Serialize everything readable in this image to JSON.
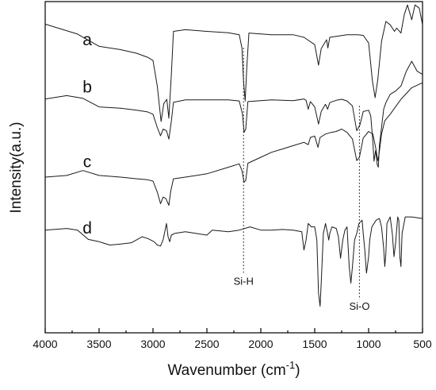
{
  "chart_data": {
    "type": "line",
    "title": "",
    "xlabel": "Wavenumber (cm",
    "xlabel_sup": "-1",
    "xlabel_end": ")",
    "ylabel": "Intensity(a.u.)",
    "xlim": [
      4000,
      500
    ],
    "x_reversed": true,
    "x_ticks": [
      4000,
      3500,
      3000,
      2500,
      2000,
      1500,
      1000,
      500
    ],
    "y_ticks": [],
    "grid": false,
    "y_units": "normalized intensity 0-1, 1 = top of plot",
    "series": [
      {
        "name": "a",
        "points": [
          [
            4000,
            0.932
          ],
          [
            3700,
            0.902
          ],
          [
            3500,
            0.865
          ],
          [
            3300,
            0.855
          ],
          [
            3150,
            0.844
          ],
          [
            3050,
            0.832
          ],
          [
            3000,
            0.822
          ],
          [
            2960,
            0.745
          ],
          [
            2925,
            0.638
          ],
          [
            2900,
            0.692
          ],
          [
            2872,
            0.705
          ],
          [
            2853,
            0.648
          ],
          [
            2830,
            0.778
          ],
          [
            2810,
            0.91
          ],
          [
            2700,
            0.915
          ],
          [
            2500,
            0.91
          ],
          [
            2300,
            0.906
          ],
          [
            2200,
            0.9
          ],
          [
            2175,
            0.86
          ],
          [
            2160,
            0.76
          ],
          [
            2145,
            0.7
          ],
          [
            2130,
            0.8
          ],
          [
            2110,
            0.905
          ],
          [
            1900,
            0.9
          ],
          [
            1700,
            0.9
          ],
          [
            1600,
            0.892
          ],
          [
            1500,
            0.87
          ],
          [
            1465,
            0.808
          ],
          [
            1440,
            0.858
          ],
          [
            1390,
            0.885
          ],
          [
            1378,
            0.86
          ],
          [
            1360,
            0.892
          ],
          [
            1200,
            0.9
          ],
          [
            1100,
            0.9
          ],
          [
            1050,
            0.898
          ],
          [
            1000,
            0.875
          ],
          [
            965,
            0.76
          ],
          [
            940,
            0.71
          ],
          [
            915,
            0.765
          ],
          [
            880,
            0.88
          ],
          [
            840,
            0.94
          ],
          [
            800,
            0.93
          ],
          [
            760,
            0.91
          ],
          [
            740,
            0.92
          ],
          [
            700,
            0.905
          ],
          [
            670,
            0.96
          ],
          [
            640,
            0.99
          ],
          [
            600,
            0.945
          ],
          [
            570,
            0.99
          ],
          [
            530,
            0.98
          ],
          [
            500,
            0.93
          ]
        ]
      },
      {
        "name": "b",
        "points": [
          [
            4000,
            0.706
          ],
          [
            3800,
            0.716
          ],
          [
            3650,
            0.708
          ],
          [
            3500,
            0.682
          ],
          [
            3300,
            0.678
          ],
          [
            3150,
            0.672
          ],
          [
            3050,
            0.667
          ],
          [
            3000,
            0.66
          ],
          [
            2960,
            0.62
          ],
          [
            2930,
            0.595
          ],
          [
            2905,
            0.615
          ],
          [
            2875,
            0.61
          ],
          [
            2853,
            0.585
          ],
          [
            2830,
            0.638
          ],
          [
            2810,
            0.696
          ],
          [
            2700,
            0.703
          ],
          [
            2500,
            0.703
          ],
          [
            2300,
            0.703
          ],
          [
            2200,
            0.7
          ],
          [
            2170,
            0.66
          ],
          [
            2155,
            0.605
          ],
          [
            2140,
            0.615
          ],
          [
            2120,
            0.698
          ],
          [
            1900,
            0.703
          ],
          [
            1700,
            0.701
          ],
          [
            1600,
            0.706
          ],
          [
            1580,
            0.702
          ],
          [
            1560,
            0.675
          ],
          [
            1540,
            0.698
          ],
          [
            1500,
            0.682
          ],
          [
            1465,
            0.63
          ],
          [
            1440,
            0.668
          ],
          [
            1400,
            0.69
          ],
          [
            1380,
            0.675
          ],
          [
            1360,
            0.695
          ],
          [
            1300,
            0.702
          ],
          [
            1250,
            0.705
          ],
          [
            1200,
            0.7
          ],
          [
            1150,
            0.685
          ],
          [
            1110,
            0.61
          ],
          [
            1080,
            0.628
          ],
          [
            1050,
            0.668
          ],
          [
            1000,
            0.672
          ],
          [
            980,
            0.655
          ],
          [
            960,
            0.575
          ],
          [
            950,
            0.518
          ],
          [
            935,
            0.55
          ],
          [
            920,
            0.508
          ],
          [
            910,
            0.5
          ],
          [
            900,
            0.565
          ],
          [
            880,
            0.62
          ],
          [
            860,
            0.675
          ],
          [
            840,
            0.695
          ],
          [
            800,
            0.72
          ],
          [
            750,
            0.73
          ],
          [
            700,
            0.745
          ],
          [
            650,
            0.79
          ],
          [
            600,
            0.82
          ],
          [
            550,
            0.79
          ],
          [
            500,
            0.78
          ]
        ]
      },
      {
        "name": "c",
        "points": [
          [
            4000,
            0.47
          ],
          [
            3800,
            0.475
          ],
          [
            3650,
            0.49
          ],
          [
            3500,
            0.475
          ],
          [
            3300,
            0.47
          ],
          [
            3150,
            0.465
          ],
          [
            3050,
            0.462
          ],
          [
            3000,
            0.458
          ],
          [
            2960,
            0.425
          ],
          [
            2930,
            0.39
          ],
          [
            2905,
            0.41
          ],
          [
            2880,
            0.405
          ],
          [
            2853,
            0.385
          ],
          [
            2835,
            0.428
          ],
          [
            2810,
            0.465
          ],
          [
            2700,
            0.47
          ],
          [
            2500,
            0.48
          ],
          [
            2300,
            0.5
          ],
          [
            2200,
            0.51
          ],
          [
            2175,
            0.49
          ],
          [
            2155,
            0.455
          ],
          [
            2140,
            0.46
          ],
          [
            2120,
            0.512
          ],
          [
            2000,
            0.53
          ],
          [
            1900,
            0.545
          ],
          [
            1800,
            0.555
          ],
          [
            1700,
            0.565
          ],
          [
            1600,
            0.575
          ],
          [
            1560,
            0.568
          ],
          [
            1540,
            0.59
          ],
          [
            1500,
            0.594
          ],
          [
            1470,
            0.56
          ],
          [
            1450,
            0.59
          ],
          [
            1400,
            0.6
          ],
          [
            1350,
            0.605
          ],
          [
            1300,
            0.608
          ],
          [
            1250,
            0.615
          ],
          [
            1200,
            0.605
          ],
          [
            1150,
            0.585
          ],
          [
            1110,
            0.52
          ],
          [
            1085,
            0.53
          ],
          [
            1050,
            0.588
          ],
          [
            1000,
            0.608
          ],
          [
            960,
            0.6
          ],
          [
            935,
            0.56
          ],
          [
            915,
            0.52
          ],
          [
            905,
            0.535
          ],
          [
            880,
            0.6
          ],
          [
            850,
            0.64
          ],
          [
            800,
            0.66
          ],
          [
            700,
            0.705
          ],
          [
            600,
            0.74
          ],
          [
            500,
            0.755
          ]
        ]
      },
      {
        "name": "d",
        "points": [
          [
            4000,
            0.31
          ],
          [
            3800,
            0.315
          ],
          [
            3700,
            0.31
          ],
          [
            3600,
            0.282
          ],
          [
            3500,
            0.275
          ],
          [
            3400,
            0.265
          ],
          [
            3300,
            0.268
          ],
          [
            3200,
            0.272
          ],
          [
            3100,
            0.29
          ],
          [
            3050,
            0.285
          ],
          [
            2990,
            0.275
          ],
          [
            2960,
            0.265
          ],
          [
            2930,
            0.262
          ],
          [
            2905,
            0.282
          ],
          [
            2875,
            0.33
          ],
          [
            2860,
            0.29
          ],
          [
            2845,
            0.275
          ],
          [
            2830,
            0.295
          ],
          [
            2800,
            0.3
          ],
          [
            2700,
            0.305
          ],
          [
            2600,
            0.3
          ],
          [
            2500,
            0.295
          ],
          [
            2450,
            0.31
          ],
          [
            2300,
            0.305
          ],
          [
            2200,
            0.31
          ],
          [
            2100,
            0.32
          ],
          [
            2000,
            0.31
          ],
          [
            1900,
            0.31
          ],
          [
            1800,
            0.312
          ],
          [
            1700,
            0.31
          ],
          [
            1620,
            0.305
          ],
          [
            1600,
            0.25
          ],
          [
            1580,
            0.28
          ],
          [
            1560,
            0.33
          ],
          [
            1530,
            0.32
          ],
          [
            1500,
            0.32
          ],
          [
            1480,
            0.28
          ],
          [
            1465,
            0.12
          ],
          [
            1450,
            0.08
          ],
          [
            1440,
            0.15
          ],
          [
            1420,
            0.3
          ],
          [
            1400,
            0.33
          ],
          [
            1380,
            0.3
          ],
          [
            1370,
            0.28
          ],
          [
            1360,
            0.3
          ],
          [
            1340,
            0.32
          ],
          [
            1300,
            0.315
          ],
          [
            1280,
            0.29
          ],
          [
            1260,
            0.225
          ],
          [
            1240,
            0.28
          ],
          [
            1220,
            0.31
          ],
          [
            1200,
            0.32
          ],
          [
            1180,
            0.2
          ],
          [
            1165,
            0.15
          ],
          [
            1150,
            0.2
          ],
          [
            1130,
            0.28
          ],
          [
            1110,
            0.3
          ],
          [
            1090,
            0.33
          ],
          [
            1060,
            0.34
          ],
          [
            1050,
            0.3
          ],
          [
            1035,
            0.25
          ],
          [
            1020,
            0.18
          ],
          [
            1000,
            0.23
          ],
          [
            990,
            0.28
          ],
          [
            970,
            0.32
          ],
          [
            930,
            0.34
          ],
          [
            900,
            0.345
          ],
          [
            880,
            0.32
          ],
          [
            860,
            0.255
          ],
          [
            850,
            0.2
          ],
          [
            840,
            0.24
          ],
          [
            830,
            0.33
          ],
          [
            800,
            0.35
          ],
          [
            780,
            0.3
          ],
          [
            765,
            0.23
          ],
          [
            750,
            0.27
          ],
          [
            730,
            0.35
          ],
          [
            720,
            0.34
          ],
          [
            710,
            0.23
          ],
          [
            700,
            0.2
          ],
          [
            690,
            0.3
          ],
          [
            660,
            0.35
          ],
          [
            600,
            0.35
          ],
          [
            500,
            0.345
          ]
        ]
      }
    ],
    "curve_labels": [
      {
        "text": "a",
        "x": 3610,
        "y": 0.868
      },
      {
        "text": "b",
        "x": 3610,
        "y": 0.725
      },
      {
        "text": "c",
        "x": 3610,
        "y": 0.5
      },
      {
        "text": "d",
        "x": 3610,
        "y": 0.3
      }
    ],
    "annotations": [
      {
        "text": "Si-H",
        "x": 2160,
        "y_top": 0.86,
        "y_bottom": 0.18,
        "label_y": 0.145
      },
      {
        "text": "Si-O",
        "x": 1085,
        "y_top": 0.685,
        "y_bottom": 0.1,
        "label_y": 0.07
      }
    ]
  }
}
